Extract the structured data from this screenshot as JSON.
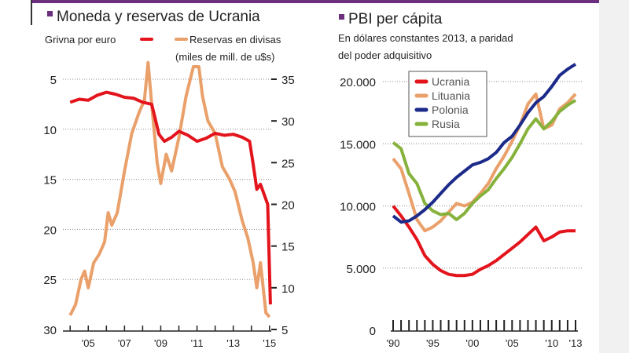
{
  "colors": {
    "accent": "#6b2f7d",
    "grivna": "#e3141c",
    "reservas": "#eaa06a",
    "ucrania": "#e3141c",
    "lituania": "#eaa06a",
    "polonia": "#1c2a8a",
    "rusia": "#86b23c"
  },
  "chart_data": [
    {
      "type": "line",
      "title": "Moneda y reservas de Ucrania",
      "left_axis_label": "Grivna por euro",
      "right_axis_label_1": "Reservas en divisas",
      "right_axis_label_2": "(miles de mill. de u$s)",
      "left_ticks": [
        "5",
        "10",
        "15",
        "20",
        "25",
        "30"
      ],
      "left_ylim": [
        5,
        30
      ],
      "left_inverted": true,
      "right_ticks": [
        "35",
        "30",
        "25",
        "20",
        "15",
        "10",
        "5"
      ],
      "right_ylim": [
        5,
        35
      ],
      "x_ticks": [
        "'05",
        "'07",
        "'09",
        "'11",
        "'13",
        "'15"
      ],
      "xlim": [
        2003.6,
        2015.4
      ],
      "series": [
        {
          "name": "Grivna por euro",
          "axis": "left",
          "x": [
            2004.0,
            2004.5,
            2005.0,
            2005.5,
            2006.0,
            2006.5,
            2007.0,
            2007.5,
            2008.0,
            2008.5,
            2008.9,
            2009.2,
            2009.6,
            2010.0,
            2010.5,
            2011.0,
            2011.5,
            2012.0,
            2012.5,
            2013.0,
            2013.5,
            2013.9,
            2014.1,
            2014.3,
            2014.5,
            2014.7,
            2014.9,
            2015.05
          ],
          "y": [
            7.3,
            7.0,
            7.1,
            6.6,
            6.3,
            6.5,
            6.8,
            6.9,
            7.3,
            7.5,
            10.5,
            11.2,
            10.8,
            10.2,
            10.6,
            11.2,
            10.9,
            10.4,
            10.6,
            10.5,
            10.8,
            11.2,
            13.5,
            16.0,
            15.5,
            16.5,
            17.5,
            27.5
          ]
        },
        {
          "name": "Reservas en divisas",
          "axis": "right",
          "x": [
            2004.0,
            2004.3,
            2004.6,
            2004.8,
            2005.0,
            2005.3,
            2005.6,
            2005.9,
            2006.1,
            2006.3,
            2006.6,
            2007.0,
            2007.4,
            2007.8,
            2008.1,
            2008.3,
            2008.5,
            2008.8,
            2009.0,
            2009.3,
            2009.6,
            2010.0,
            2010.4,
            2010.8,
            2011.1,
            2011.3,
            2011.6,
            2012.0,
            2012.4,
            2012.8,
            2013.1,
            2013.5,
            2013.8,
            2014.1,
            2014.3,
            2014.5,
            2014.8,
            2015.0
          ],
          "y": [
            6.7,
            8.0,
            11.0,
            12.0,
            10.0,
            13.0,
            14.0,
            15.5,
            19.0,
            17.5,
            19.0,
            24.0,
            28.5,
            31.0,
            32.5,
            37.0,
            32.0,
            25.0,
            22.5,
            26.0,
            24.0,
            28.0,
            33.0,
            36.5,
            36.5,
            33.0,
            30.0,
            28.5,
            24.5,
            23.0,
            21.5,
            18.0,
            16.0,
            13.0,
            10.0,
            13.0,
            7.0,
            6.5
          ]
        }
      ]
    },
    {
      "type": "line",
      "title": "PBI per cápita",
      "subtitle_1": "En dólares constantes 2013, a paridad",
      "subtitle_2": "del poder adquisitivo",
      "y_ticks": [
        "20.000",
        "15.000",
        "10.000",
        "5.000",
        "0"
      ],
      "ylim": [
        0,
        21000
      ],
      "x_ticks": [
        "'90",
        "'95",
        "'00",
        "'05",
        "'10",
        "'13"
      ],
      "xlim": [
        1989.5,
        2013.5
      ],
      "legend": "top-left",
      "x": [
        1990,
        1991,
        1992,
        1993,
        1994,
        1995,
        1996,
        1997,
        1998,
        1999,
        2000,
        2001,
        2002,
        2003,
        2004,
        2005,
        2006,
        2007,
        2008,
        2009,
        2010,
        2011,
        2012,
        2013
      ],
      "series": [
        {
          "name": "Ucrania",
          "values": [
            10000,
            9200,
            8300,
            7300,
            6000,
            5300,
            4800,
            4500,
            4400,
            4400,
            4500,
            4900,
            5200,
            5600,
            6100,
            6600,
            7100,
            7700,
            8300,
            7200,
            7500,
            7900,
            8000,
            8000
          ]
        },
        {
          "name": "Lituania",
          "values": [
            13800,
            13000,
            11000,
            8900,
            8000,
            8300,
            8800,
            9500,
            10200,
            10000,
            10300,
            11000,
            11800,
            13000,
            14000,
            15200,
            16500,
            18200,
            19000,
            16200,
            16500,
            17800,
            18300,
            19000
          ]
        },
        {
          "name": "Polonia",
          "values": [
            9200,
            8700,
            8800,
            9200,
            9700,
            10300,
            11000,
            11700,
            12300,
            12800,
            13300,
            13500,
            13800,
            14300,
            15100,
            15600,
            16500,
            17500,
            18300,
            18800,
            19600,
            20500,
            21000,
            21400
          ]
        },
        {
          "name": "Rusia",
          "values": [
            15100,
            14600,
            12600,
            11800,
            10200,
            9600,
            9300,
            9400,
            8900,
            9400,
            10200,
            10800,
            11300,
            12200,
            13000,
            13900,
            15000,
            16200,
            17000,
            16200,
            16800,
            17600,
            18100,
            18500
          ]
        }
      ]
    }
  ]
}
